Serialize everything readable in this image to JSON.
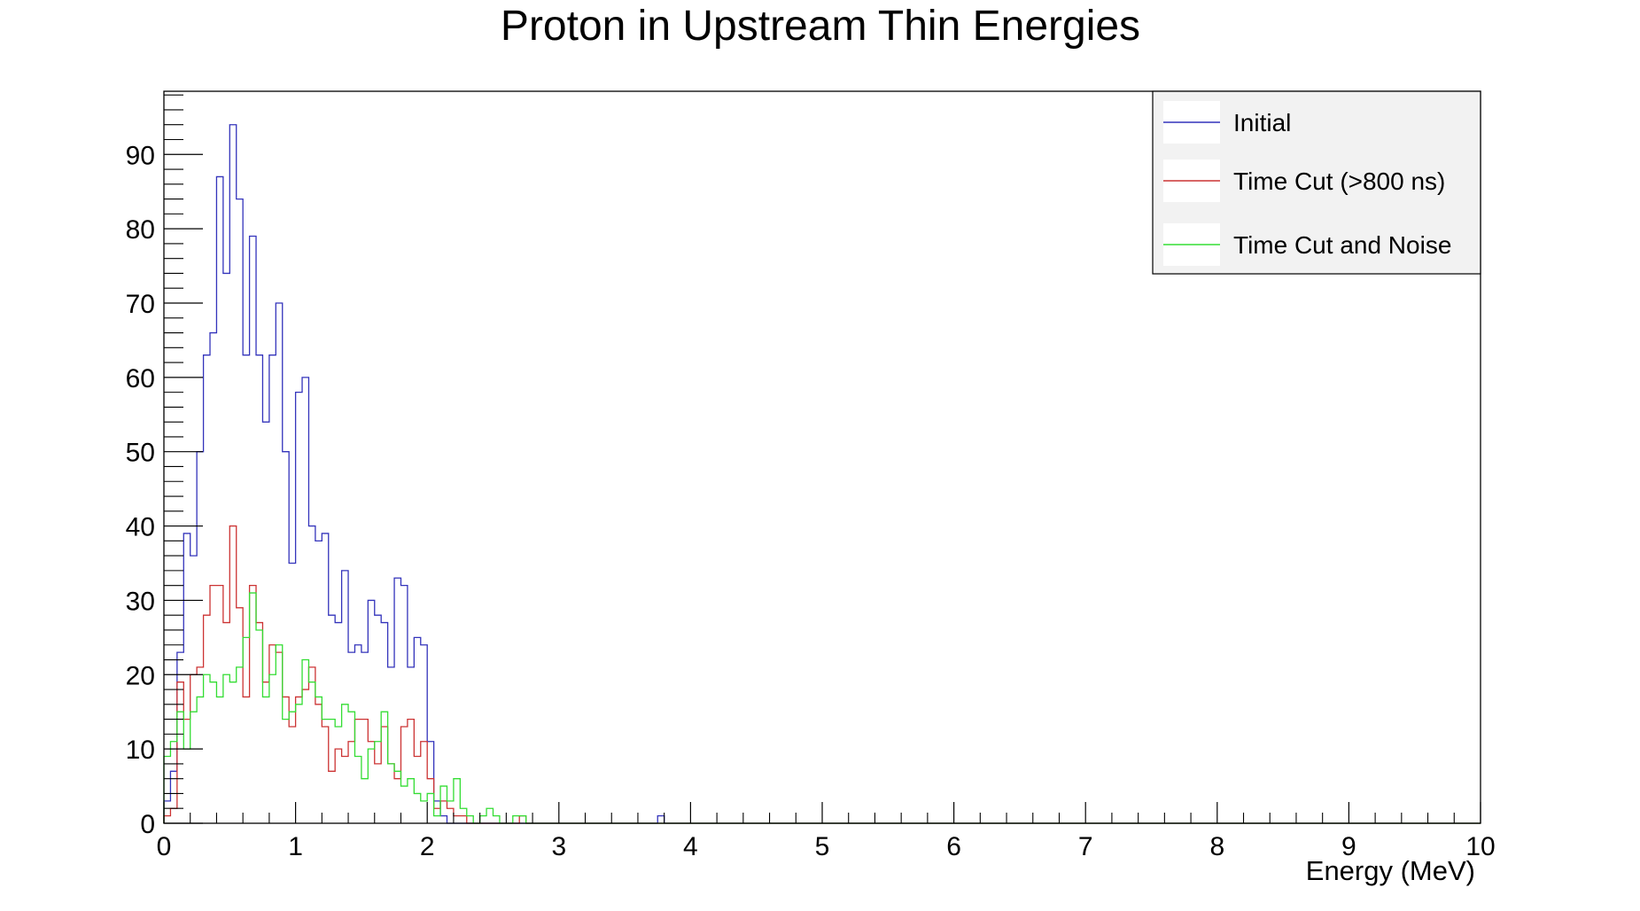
{
  "chart_data": {
    "type": "histogram",
    "title": "Proton in Upstream Thin Energies",
    "xlabel": "Energy (MeV)",
    "ylabel": "",
    "xlim": [
      0,
      10
    ],
    "ylim": [
      0,
      98.5
    ],
    "bin_width": 0.05,
    "grid": false,
    "legend_position": "top-right",
    "x_ticks": [
      "0",
      "1",
      "2",
      "3",
      "4",
      "5",
      "6",
      "7",
      "8",
      "9",
      "10"
    ],
    "y_ticks": [
      "0",
      "10",
      "20",
      "30",
      "40",
      "50",
      "60",
      "70",
      "80",
      "90"
    ],
    "series": [
      {
        "name": "Initial",
        "color": "#3333bb",
        "values": [
          3,
          7,
          23,
          39,
          36,
          50,
          63,
          66,
          87,
          74,
          94,
          84,
          63,
          79,
          63,
          54,
          63,
          70,
          50,
          35,
          58,
          60,
          40,
          38,
          39,
          28,
          27,
          34,
          23,
          24,
          23,
          30,
          28,
          27,
          21,
          33,
          32,
          21,
          25,
          24,
          11,
          3,
          1,
          0,
          0,
          0,
          0,
          0,
          0,
          0,
          0,
          0,
          0,
          0,
          0,
          0,
          0,
          0,
          0,
          0,
          0,
          0,
          0,
          0,
          0,
          0,
          0,
          0,
          0,
          0,
          0,
          0,
          0,
          0,
          0,
          1,
          0
        ]
      },
      {
        "name": "Time Cut (>800 ns)",
        "color": "#cc3333",
        "values": [
          1,
          2,
          19,
          14,
          20,
          21,
          28,
          32,
          32,
          27,
          40,
          29,
          17,
          32,
          27,
          19,
          24,
          23,
          17,
          13,
          17,
          18,
          21,
          16,
          13,
          7,
          10,
          9,
          11,
          14,
          14,
          11,
          8,
          13,
          8,
          6,
          13,
          14,
          9,
          11,
          6,
          2,
          3,
          2,
          1,
          1,
          0,
          0,
          0,
          0,
          0,
          0,
          0,
          0,
          1
        ]
      },
      {
        "name": "Time Cut and Noise",
        "color": "#33dd33",
        "values": [
          9,
          11,
          15,
          10,
          15,
          17,
          20,
          19,
          17,
          20,
          19,
          21,
          25,
          31,
          26,
          17,
          20,
          24,
          14,
          15,
          16,
          22,
          19,
          17,
          14,
          14,
          13,
          16,
          15,
          9,
          6,
          10,
          11,
          15,
          8,
          7,
          5,
          6,
          4,
          3,
          4,
          1,
          5,
          3,
          6,
          2,
          1,
          0,
          1,
          2,
          1,
          0,
          0,
          1,
          1
        ]
      }
    ]
  }
}
